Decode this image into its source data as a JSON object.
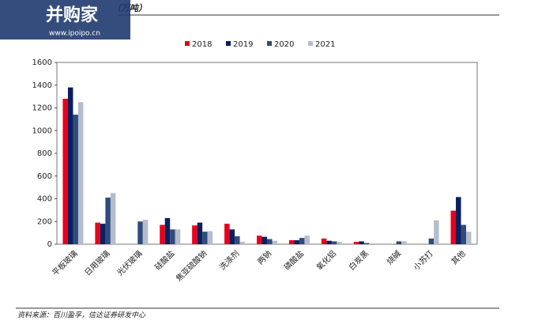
{
  "chart_data": {
    "type": "bar",
    "title": "（万吨）",
    "categories": [
      "平板玻璃",
      "日用玻璃",
      "光伏玻璃",
      "硅酸盐",
      "焦亚硫酸钠",
      "洗涤剂",
      "两钠",
      "磷酸盐",
      "氧化铝",
      "白炭黑",
      "烧碱",
      "小苏打",
      "其他"
    ],
    "series": [
      {
        "name": "2018",
        "color": "#e8001c",
        "values": [
          1280,
          190,
          0,
          170,
          165,
          180,
          75,
          35,
          50,
          20,
          0,
          0,
          295
        ]
      },
      {
        "name": "2019",
        "color": "#0b1f5e",
        "values": [
          1380,
          180,
          0,
          230,
          190,
          130,
          65,
          35,
          30,
          25,
          0,
          0,
          415
        ]
      },
      {
        "name": "2020",
        "color": "#2e4b7c",
        "values": [
          1140,
          410,
          200,
          130,
          110,
          70,
          45,
          55,
          25,
          10,
          25,
          50,
          170
        ]
      },
      {
        "name": "2021",
        "color": "#b5bdcc",
        "values": [
          1250,
          450,
          215,
          130,
          115,
          20,
          30,
          75,
          20,
          0,
          25,
          210,
          110
        ]
      }
    ],
    "ylim": [
      0,
      1600
    ],
    "yticks": [
      0,
      200,
      400,
      600,
      800,
      1000,
      1200,
      1400,
      1600
    ],
    "source": "资料来源：百川盈孚，信达证券研发中心"
  },
  "watermark": {
    "brand": "并购家",
    "url": "www.ipoipo.cn"
  }
}
